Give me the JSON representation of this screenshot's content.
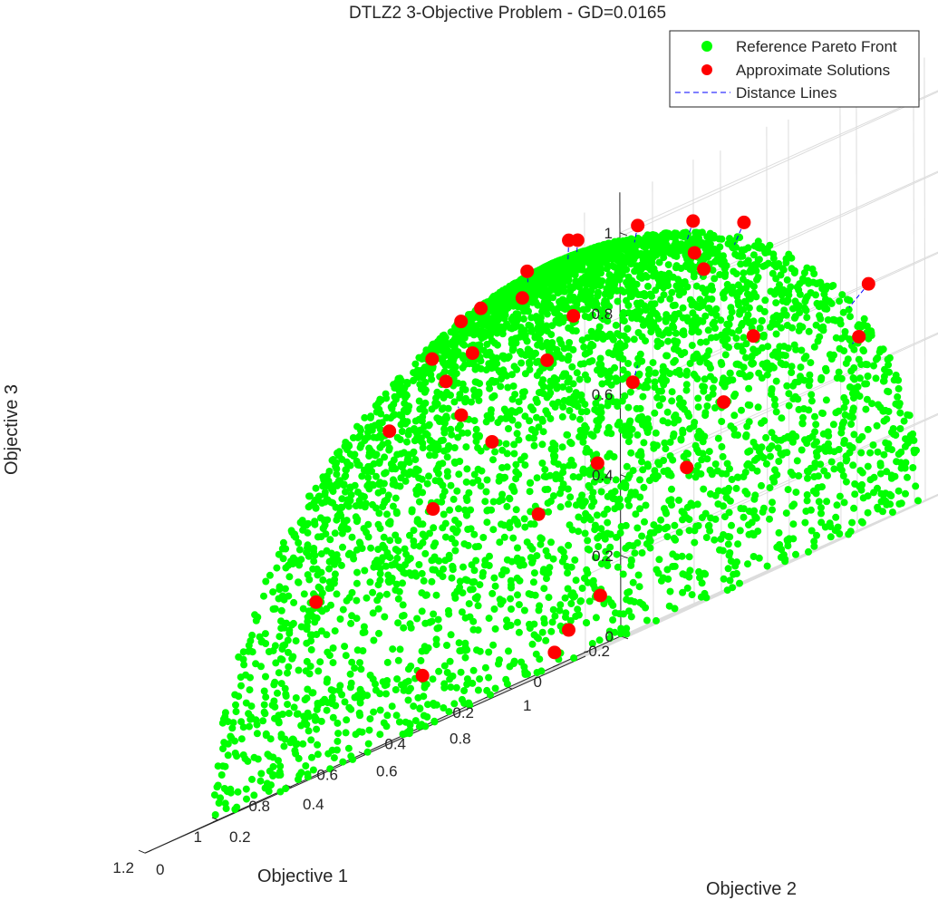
{
  "chart_data": {
    "type": "scatter3d",
    "title": "DTLZ2 3-Objective Problem - GD=0.0165",
    "xlabel": "Objective 1",
    "ylabel": "Objective 2",
    "zlabel": "Objective 3",
    "xlim": [
      -0.2,
      1.2
    ],
    "ylim": [
      0,
      1.2
    ],
    "zlim": [
      0,
      1.1
    ],
    "x_ticks": [
      "-0.2",
      "0",
      "0.2",
      "0.4",
      "0.6",
      "0.8",
      "1",
      "1.2"
    ],
    "y_ticks": [
      "0",
      "0.2",
      "0.4",
      "0.6",
      "0.8",
      "1"
    ],
    "z_ticks": [
      "0",
      "0.2",
      "0.4",
      "0.6",
      "0.8",
      "1"
    ],
    "grid": true,
    "legend_position": "top-right",
    "legend": [
      {
        "label": "Reference Pareto Front",
        "marker": "dot",
        "color": "#00ff00"
      },
      {
        "label": "Approximate Solutions",
        "marker": "dot",
        "color": "#ff0000"
      },
      {
        "label": "Distance Lines",
        "marker": "dashed-line",
        "color": "#0000ff"
      }
    ],
    "colors": {
      "front": "#00ff00",
      "solutions": "#ff0000",
      "lines": "#0000ff"
    },
    "series": [
      {
        "name": "Reference Pareto Front",
        "description_shape": "unit sphere octant x^2+y^2+z^2=1, x,y,z>=0",
        "points_count": 5000
      },
      {
        "name": "Approximate Solutions",
        "points": [
          [
            0.0,
            0.07,
            1.03
          ],
          [
            0.22,
            0.01,
            0.97
          ],
          [
            0.08,
            0.12,
            1.04
          ],
          [
            0.3,
            0.03,
            0.96
          ],
          [
            0.17,
            0.09,
            1.01
          ],
          [
            0.05,
            0.28,
            1.0
          ],
          [
            0.26,
            0.16,
            0.95
          ],
          [
            0.06,
            0.44,
            0.95
          ],
          [
            0.04,
            0.56,
            0.89
          ],
          [
            0.45,
            0.09,
            0.9
          ],
          [
            0.11,
            0.49,
            0.87
          ],
          [
            0.45,
            0.2,
            0.87
          ],
          [
            0.18,
            0.58,
            0.82
          ],
          [
            0.38,
            0.41,
            0.85
          ],
          [
            0.55,
            0.22,
            0.83
          ],
          [
            0.49,
            0.44,
            0.77
          ],
          [
            0.57,
            0.28,
            0.73
          ],
          [
            0.02,
            0.88,
            0.6
          ],
          [
            0.63,
            0.14,
            0.77
          ],
          [
            0.07,
            0.9,
            0.48
          ],
          [
            0.24,
            0.77,
            0.6
          ],
          [
            0.4,
            0.59,
            0.62
          ],
          [
            0.62,
            0.41,
            0.63
          ],
          [
            0.36,
            0.8,
            0.47
          ],
          [
            0.58,
            0.66,
            0.46
          ],
          [
            0.74,
            0.36,
            0.53
          ],
          [
            0.89,
            0.18,
            0.43
          ],
          [
            0.7,
            0.61,
            0.4
          ],
          [
            0.48,
            0.81,
            0.35
          ],
          [
            0.88,
            0.46,
            0.13
          ],
          [
            0.67,
            0.75,
            0.13
          ],
          [
            0.72,
            0.71,
            0.08
          ],
          [
            0.74,
            0.69,
            0.04
          ]
        ]
      },
      {
        "name": "Distance Lines",
        "description": "segment from each approximate solution to its nearest reference point"
      }
    ]
  }
}
